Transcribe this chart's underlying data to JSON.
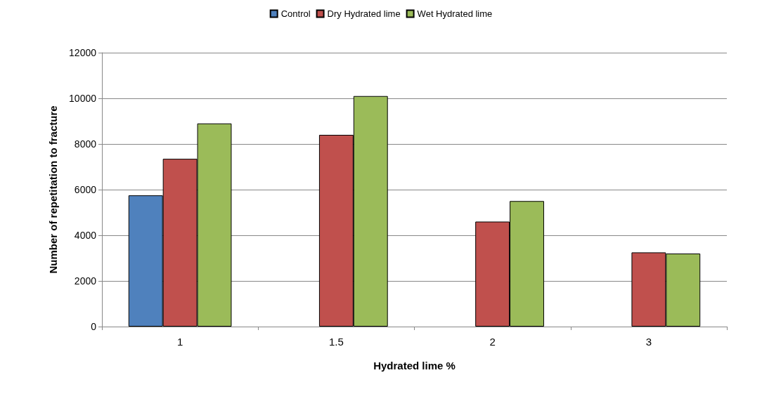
{
  "chart_data": {
    "type": "bar",
    "xlabel": "Hydrated lime %",
    "ylabel": "Number of repetitation to fracture",
    "categories": [
      "1",
      "1.5",
      "2",
      "3"
    ],
    "series": [
      {
        "name": "Control",
        "color": "#4f81bd",
        "values": [
          5750,
          null,
          null,
          null
        ]
      },
      {
        "name": "Dry Hydrated lime",
        "color": "#c0504d",
        "values": [
          7350,
          8400,
          4600,
          3250
        ]
      },
      {
        "name": "Wet Hydrated lime",
        "color": "#9bbb59",
        "values": [
          8900,
          10100,
          5500,
          3200
        ]
      }
    ],
    "ylim": [
      0,
      12000
    ],
    "yticks": [
      0,
      2000,
      4000,
      6000,
      8000,
      10000,
      12000
    ],
    "grid": "y",
    "legend": "top"
  }
}
